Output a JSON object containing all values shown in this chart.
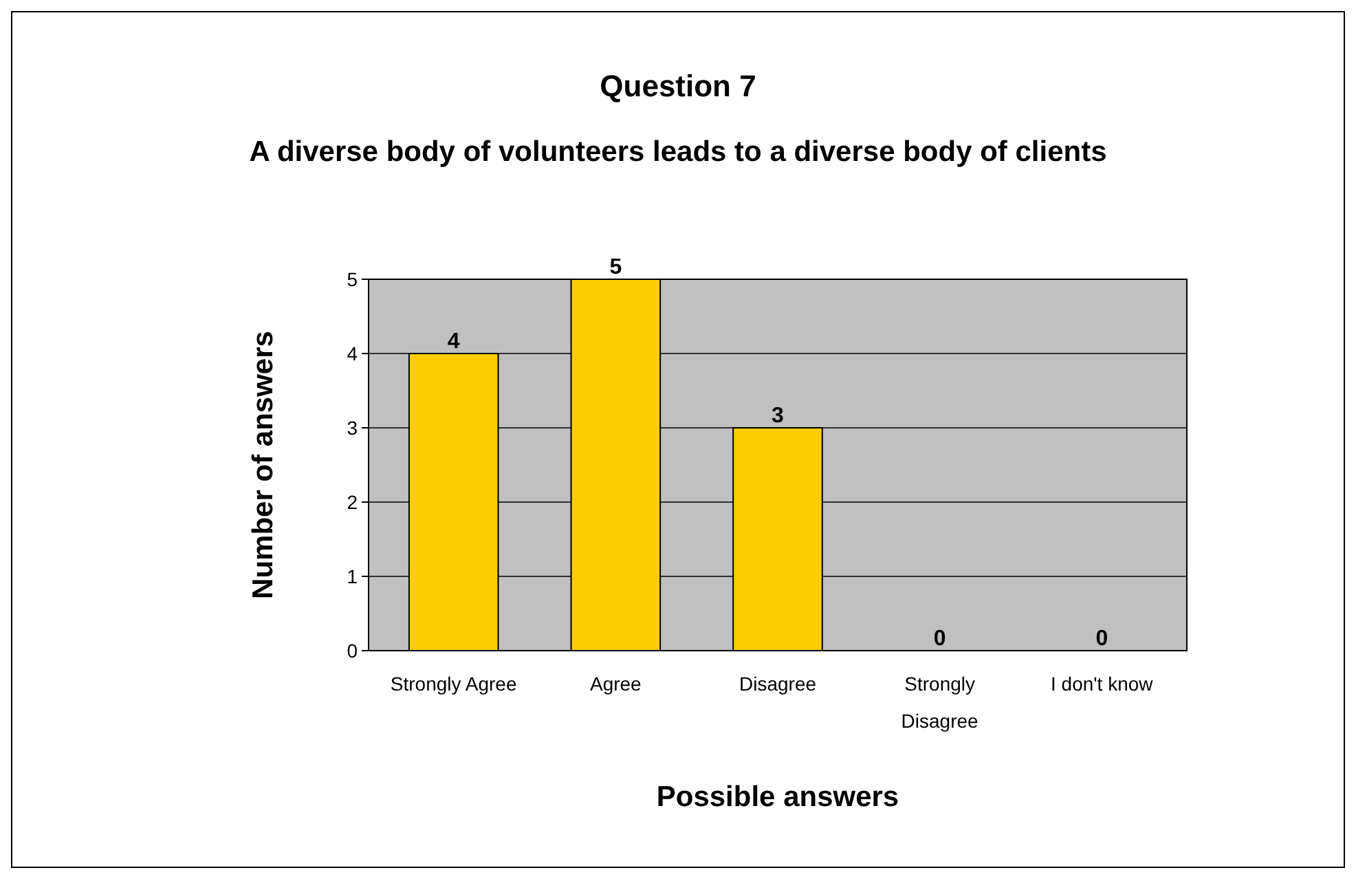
{
  "chart_data": {
    "type": "bar",
    "title": "Question 7",
    "subtitle": "A diverse body of volunteers leads to a diverse body of clients",
    "xlabel": "Possible answers",
    "ylabel": "Number of answers",
    "categories": [
      "Strongly Agree",
      "Agree",
      "Disagree",
      "Strongly Disagree",
      "I don't know"
    ],
    "values": [
      4,
      5,
      3,
      0,
      0
    ],
    "color": "#ffcc00",
    "ylim": [
      0,
      5
    ],
    "yticks": [
      0,
      1,
      2,
      3,
      4,
      5
    ],
    "grid": "y",
    "data_labels": true
  }
}
